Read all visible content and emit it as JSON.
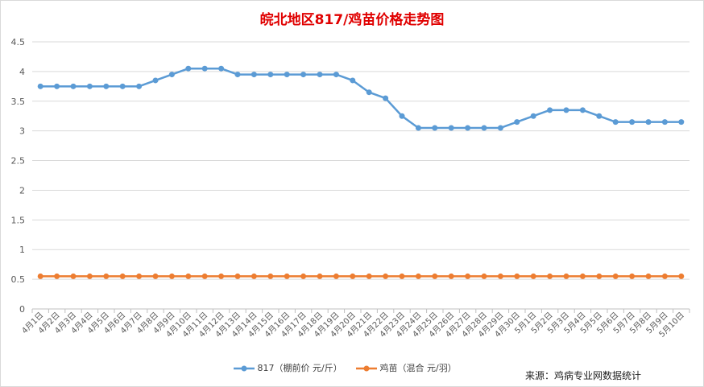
{
  "chart_data": {
    "type": "line",
    "title": "皖北地区817/鸡苗价格走势图",
    "categories": [
      "4月1日",
      "4月2日",
      "4月3日",
      "4月4日",
      "4月5日",
      "4月6日",
      "4月7日",
      "4月8日",
      "4月9日",
      "4月10日",
      "4月11日",
      "4月12日",
      "4月13日",
      "4月14日",
      "4月15日",
      "4月16日",
      "4月17日",
      "4月18日",
      "4月19日",
      "4月20日",
      "4月21日",
      "4月22日",
      "4月23日",
      "4月24日",
      "4月25日",
      "4月26日",
      "4月27日",
      "4月28日",
      "4月29日",
      "4月30日",
      "5月1日",
      "5月2日",
      "5月3日",
      "5月4日",
      "5月5日",
      "5月6日",
      "5月7日",
      "5月8日",
      "5月9日",
      "5月10日"
    ],
    "series": [
      {
        "name": "817（棚前价 元/斤）",
        "color": "#5b9bd5",
        "values": [
          3.75,
          3.75,
          3.75,
          3.75,
          3.75,
          3.75,
          3.75,
          3.85,
          3.95,
          4.05,
          4.05,
          4.05,
          3.95,
          3.95,
          3.95,
          3.95,
          3.95,
          3.95,
          3.95,
          3.85,
          3.65,
          3.55,
          3.25,
          3.05,
          3.05,
          3.05,
          3.05,
          3.05,
          3.05,
          3.15,
          3.25,
          3.35,
          3.35,
          3.35,
          3.25,
          3.15,
          3.15,
          3.15,
          3.15,
          3.15
        ]
      },
      {
        "name": "鸡苗（混合 元/羽）",
        "color": "#ed7d31",
        "values": [
          0.55,
          0.55,
          0.55,
          0.55,
          0.55,
          0.55,
          0.55,
          0.55,
          0.55,
          0.55,
          0.55,
          0.55,
          0.55,
          0.55,
          0.55,
          0.55,
          0.55,
          0.55,
          0.55,
          0.55,
          0.55,
          0.55,
          0.55,
          0.55,
          0.55,
          0.55,
          0.55,
          0.55,
          0.55,
          0.55,
          0.55,
          0.55,
          0.55,
          0.55,
          0.55,
          0.55,
          0.55,
          0.55,
          0.55,
          0.55
        ]
      }
    ],
    "ylim": [
      0,
      4.5
    ],
    "yticks": [
      "0",
      "0.5",
      "1",
      "1.5",
      "2",
      "2.5",
      "3",
      "3.5",
      "4",
      "4.5"
    ],
    "grid": true,
    "legend": "bottom"
  },
  "source_note": "来源：鸡病专业网数据统计"
}
